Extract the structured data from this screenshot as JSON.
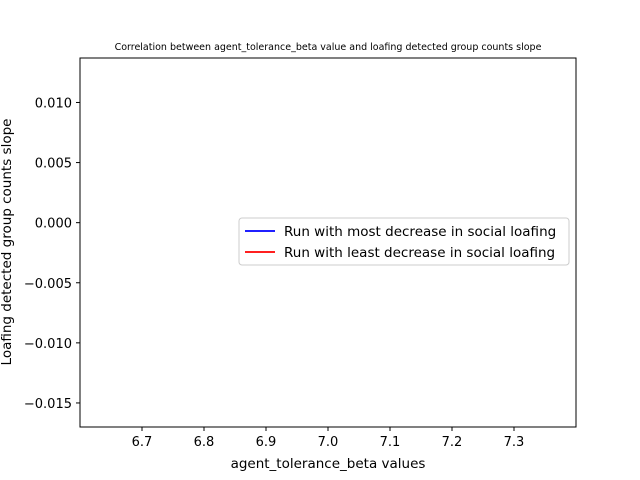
{
  "chart_data": {
    "type": "line",
    "title": "Correlation between agent_tolerance_beta value and loafing detected group counts slope",
    "xlabel": "agent_tolerance_beta values",
    "ylabel": "Loafing detected group counts slope",
    "xlim": [
      6.6,
      7.4
    ],
    "ylim": [
      -0.017,
      0.0137
    ],
    "xticks": [
      6.7,
      6.8,
      6.9,
      7.0,
      7.1,
      7.2,
      7.3
    ],
    "xtick_labels": [
      "6.7",
      "6.8",
      "6.9",
      "7.0",
      "7.1",
      "7.2",
      "7.3"
    ],
    "yticks": [
      0.01,
      0.005,
      0.0,
      -0.005,
      -0.01,
      -0.015
    ],
    "ytick_labels": [
      "0.010",
      "0.005",
      "0.000",
      "−0.005",
      "−0.010",
      "−0.015"
    ],
    "grid": false,
    "legend_position": "center-right",
    "series": [
      {
        "name": "Run with most decrease in social loafing",
        "color": "#0000ff",
        "x": [],
        "y": []
      },
      {
        "name": "Run with least decrease in social loafing",
        "color": "#ff0000",
        "x": [],
        "y": []
      }
    ]
  }
}
